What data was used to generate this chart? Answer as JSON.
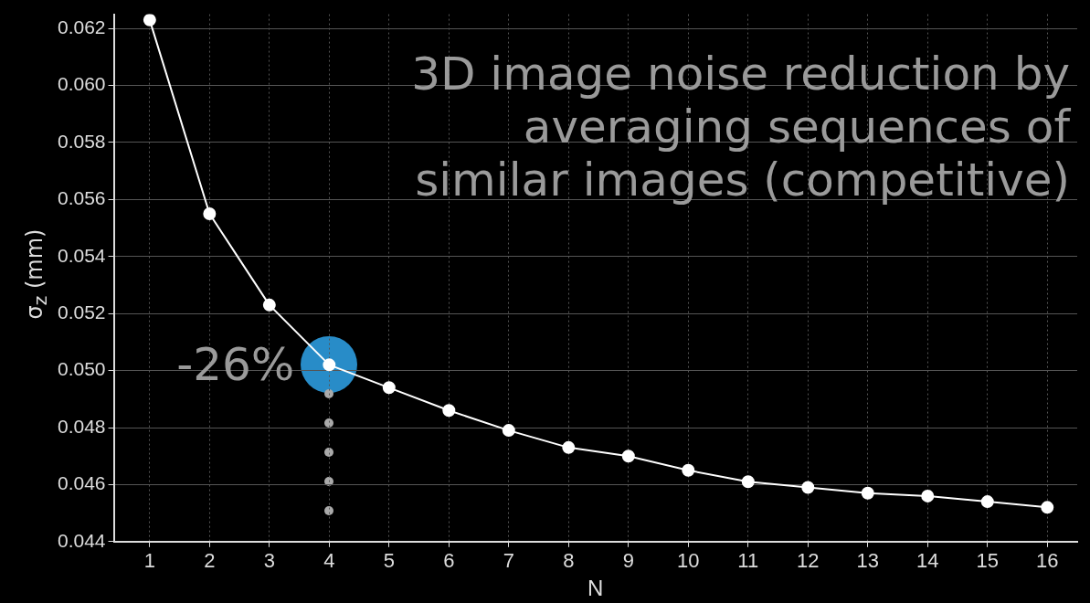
{
  "chart_data": {
    "type": "line",
    "title": "3D image noise reduction by averaging sequences of similar images (competitive)",
    "xlabel": "N",
    "ylabel": "σ$_{z}$ (mm)",
    "x": [
      1,
      2,
      3,
      4,
      5,
      6,
      7,
      8,
      9,
      10,
      11,
      12,
      13,
      14,
      15,
      16
    ],
    "series": [
      {
        "color": "#ffffff",
        "values": [
          0.0623,
          0.0555,
          0.0523,
          0.0502,
          0.0494,
          0.0486,
          0.0479,
          0.0473,
          0.047,
          0.0465,
          0.0461,
          0.0459,
          0.0457,
          0.0456,
          0.0454,
          0.0452
        ]
      }
    ],
    "xlim": [
      0.4,
      16.5
    ],
    "xticks": [
      1,
      2,
      3,
      4,
      5,
      6,
      7,
      8,
      9,
      10,
      11,
      12,
      13,
      14,
      15,
      16
    ],
    "ylim": [
      0.044,
      0.0625
    ],
    "yticks": [
      0.044,
      0.046,
      0.048,
      {
        "value": 0.05,
        "label": "0.050"
      },
      0.052,
      0.054,
      0.056,
      0.058,
      {
        "value": 0.06,
        "label": "0.060"
      },
      0.062
    ],
    "annotations": [
      {
        "text": "-26%",
        "x": 4,
        "y": 0.0502
      }
    ],
    "grid": true,
    "marker": "circle",
    "line_style": "solid",
    "legend": false
  }
}
